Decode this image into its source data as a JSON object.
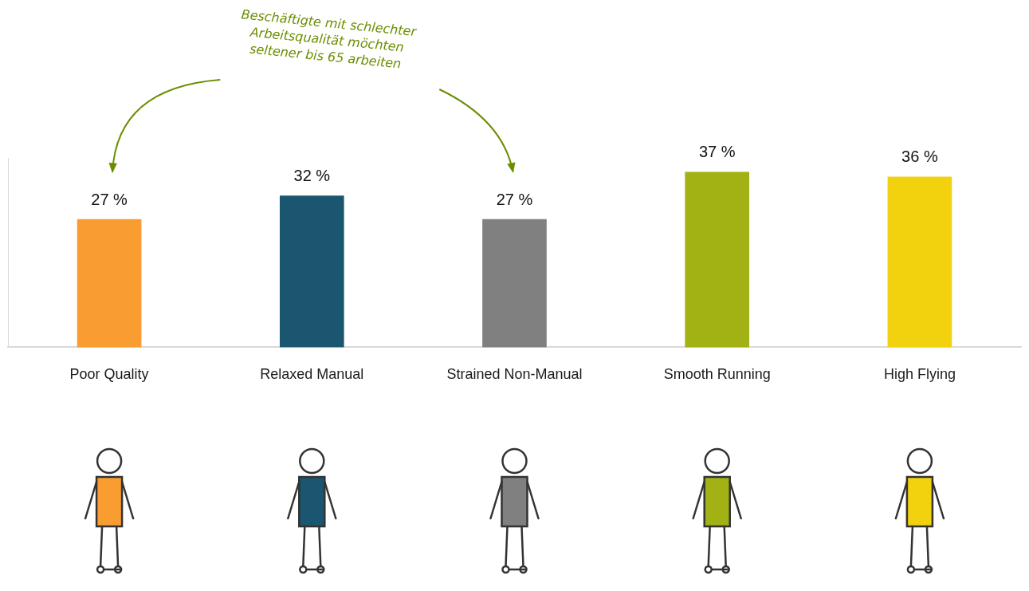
{
  "chart_data": {
    "type": "bar",
    "annotation": "Beschäftigte mit schlechter Arbeitsqualität möchten seltener bis 65 arbeiten",
    "categories": [
      "Poor Quality",
      "Relaxed Manual",
      "Strained Non-Manual",
      "Smooth Running",
      "High Flying"
    ],
    "values": [
      27,
      32,
      27,
      37,
      36
    ],
    "value_labels": [
      "27 %",
      "32 %",
      "27 %",
      "37 %",
      "36 %"
    ],
    "colors": [
      "#f99d33",
      "#1b5670",
      "#808080",
      "#a2b215",
      "#f2d10e"
    ],
    "ylim": [
      0,
      40
    ],
    "grid": false,
    "data_labels": true,
    "tick_labels": "x"
  }
}
